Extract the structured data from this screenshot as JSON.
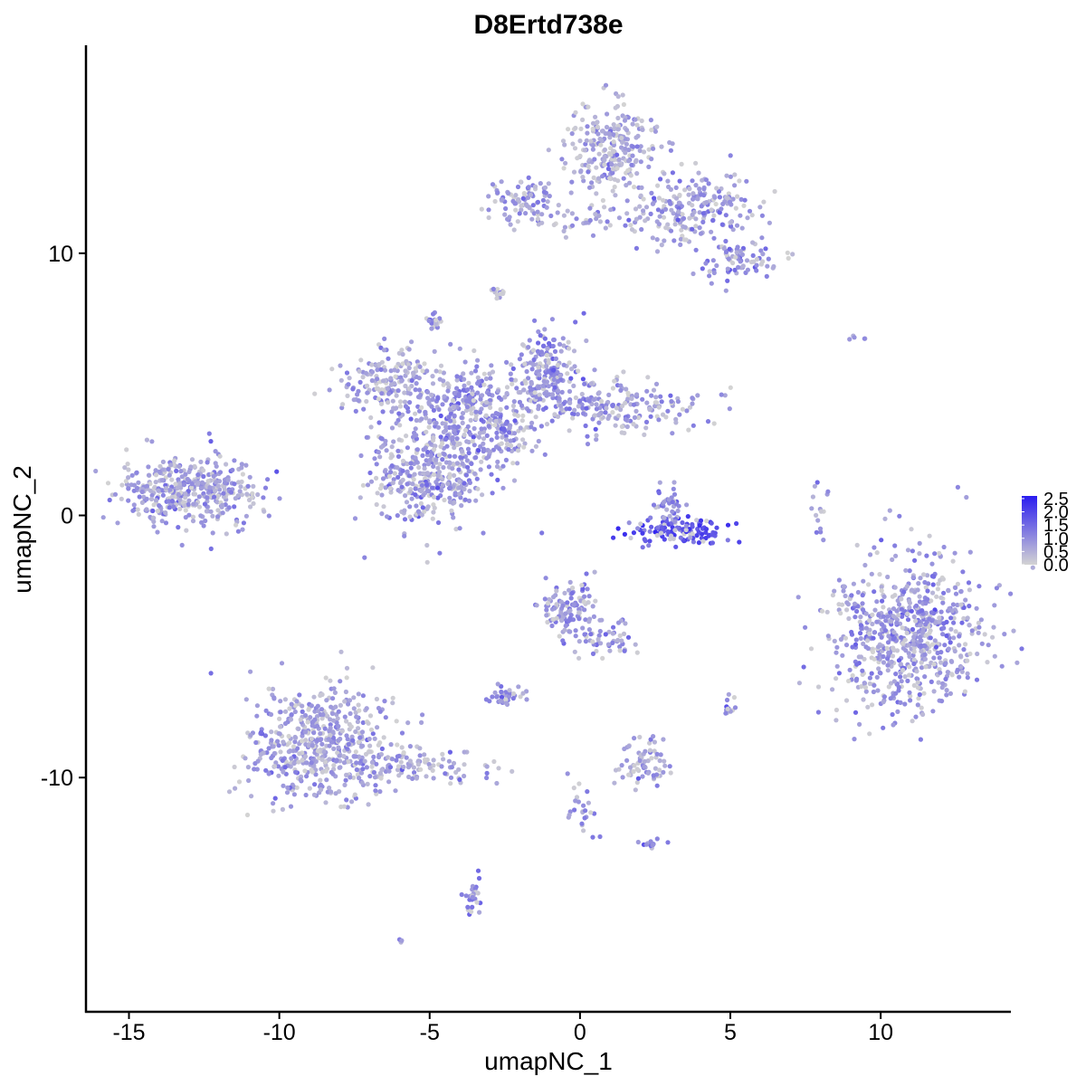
{
  "chart_data": {
    "type": "scatter",
    "title": "D8Ertd738e",
    "xlabel": "umapNC_1",
    "ylabel": "umapNC_2",
    "xlim": [
      -16.4,
      14.3
    ],
    "ylim": [
      -18.9,
      17.9
    ],
    "xticks": [
      -15,
      -10,
      -5,
      0,
      5,
      10
    ],
    "xtick_labels": [
      "-15",
      "-10",
      "-5",
      "0",
      "5",
      "10"
    ],
    "yticks": [
      -10,
      0,
      10
    ],
    "ytick_labels": [
      "-10",
      "0",
      "10"
    ],
    "grid": false,
    "colorbar": {
      "position": "right",
      "min": 0.0,
      "max": 2.6,
      "low_color": "#d3d3d3",
      "high_color": "#2a1cf0",
      "ticks": [
        2.5,
        2.0,
        1.5,
        1.0,
        0.5,
        0.0
      ],
      "tick_labels": [
        "2.5",
        "2.0",
        "1.5",
        "1.0",
        "0.5",
        "0.0"
      ]
    },
    "clusters": [
      {
        "center": [
          -13.0,
          1.0
        ],
        "spread": [
          1.15,
          0.65
        ],
        "n": 420,
        "expr": 0.75
      },
      {
        "center": [
          -5.0,
          1.5
        ],
        "spread": [
          1.0,
          0.95
        ],
        "n": 380,
        "expr": 0.8
      },
      {
        "center": [
          -4.0,
          4.2
        ],
        "spread": [
          1.4,
          0.8
        ],
        "n": 300,
        "expr": 0.9
      },
      {
        "center": [
          -6.4,
          5.2
        ],
        "spread": [
          0.8,
          0.55
        ],
        "n": 140,
        "expr": 0.7
      },
      {
        "center": [
          -1.2,
          5.5
        ],
        "spread": [
          0.55,
          0.7
        ],
        "n": 170,
        "expr": 1.0
      },
      {
        "center": [
          1.2,
          4.1
        ],
        "spread": [
          1.6,
          0.5
        ],
        "n": 220,
        "expr": 0.85
      },
      {
        "center": [
          -3.0,
          3.0
        ],
        "spread": [
          0.8,
          0.6
        ],
        "n": 120,
        "expr": 0.95
      },
      {
        "center": [
          -2.0,
          12.0
        ],
        "spread": [
          0.6,
          0.4
        ],
        "n": 90,
        "expr": 0.8
      },
      {
        "center": [
          0.6,
          11.3
        ],
        "spread": [
          1.3,
          0.25
        ],
        "n": 60,
        "expr": 0.75
      },
      {
        "center": [
          1.0,
          14.0
        ],
        "spread": [
          0.75,
          0.9
        ],
        "n": 260,
        "expr": 0.7
      },
      {
        "center": [
          4.0,
          11.8
        ],
        "spread": [
          0.9,
          0.7
        ],
        "n": 200,
        "expr": 0.8
      },
      {
        "center": [
          5.3,
          9.7
        ],
        "spread": [
          0.7,
          0.35
        ],
        "n": 80,
        "expr": 1.0
      },
      {
        "center": [
          -8.7,
          -8.6
        ],
        "spread": [
          1.2,
          1.05
        ],
        "n": 520,
        "expr": 0.75
      },
      {
        "center": [
          -5.5,
          -9.6
        ],
        "spread": [
          1.1,
          0.4
        ],
        "n": 120,
        "expr": 0.7
      },
      {
        "center": [
          10.9,
          -4.6
        ],
        "spread": [
          1.3,
          1.5
        ],
        "n": 700,
        "expr": 0.9
      },
      {
        "center": [
          3.3,
          -0.6
        ],
        "spread": [
          0.9,
          0.25
        ],
        "n": 120,
        "expr": 1.8
      },
      {
        "center": [
          3.0,
          0.4
        ],
        "spread": [
          0.3,
          0.45
        ],
        "n": 40,
        "expr": 1.0
      },
      {
        "center": [
          -0.3,
          -3.6
        ],
        "spread": [
          0.45,
          0.55
        ],
        "n": 120,
        "expr": 0.9
      },
      {
        "center": [
          0.9,
          -4.7
        ],
        "spread": [
          0.45,
          0.35
        ],
        "n": 50,
        "expr": 0.8
      },
      {
        "center": [
          2.2,
          -9.4
        ],
        "spread": [
          0.45,
          0.4
        ],
        "n": 70,
        "expr": 0.7
      },
      {
        "center": [
          -2.5,
          -6.9
        ],
        "spread": [
          0.35,
          0.2
        ],
        "n": 35,
        "expr": 0.9
      },
      {
        "center": [
          -4.8,
          7.4
        ],
        "spread": [
          0.15,
          0.15
        ],
        "n": 20,
        "expr": 1.0
      },
      {
        "center": [
          -2.7,
          8.5
        ],
        "spread": [
          0.15,
          0.1
        ],
        "n": 12,
        "expr": 0.9
      },
      {
        "center": [
          -3.6,
          -14.5
        ],
        "spread": [
          0.15,
          0.45
        ],
        "n": 30,
        "expr": 1.0
      },
      {
        "center": [
          0.0,
          -11.2
        ],
        "spread": [
          0.2,
          0.6
        ],
        "n": 25,
        "expr": 0.9
      },
      {
        "center": [
          2.3,
          -12.5
        ],
        "spread": [
          0.25,
          0.1
        ],
        "n": 12,
        "expr": 1.0
      },
      {
        "center": [
          5.0,
          -7.3
        ],
        "spread": [
          0.12,
          0.2
        ],
        "n": 12,
        "expr": 1.0
      },
      {
        "center": [
          8.0,
          0.2
        ],
        "spread": [
          0.2,
          0.6
        ],
        "n": 15,
        "expr": 0.8
      },
      {
        "center": [
          9.6,
          6.7
        ],
        "spread": [
          0.3,
          0.12
        ],
        "n": 5,
        "expr": 0.5
      },
      {
        "center": [
          -6.0,
          -16.2
        ],
        "spread": [
          0.05,
          0.05
        ],
        "n": 3,
        "expr": 1.0
      }
    ]
  }
}
